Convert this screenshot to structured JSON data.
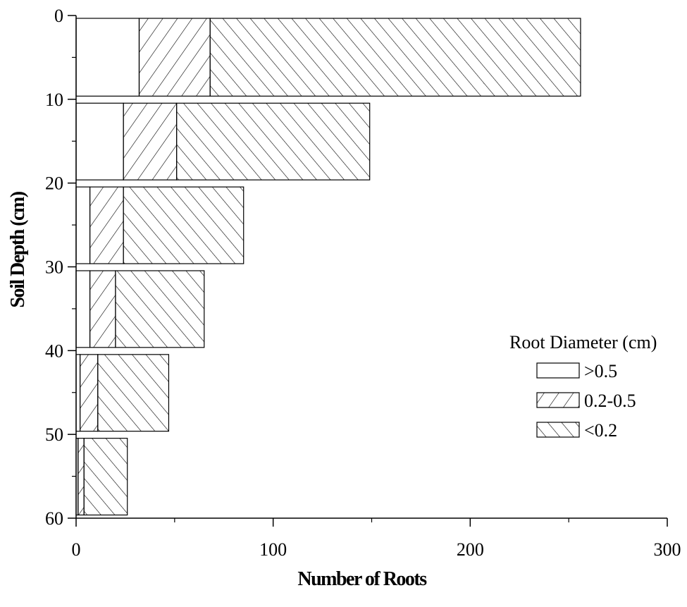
{
  "chart_data": {
    "type": "bar",
    "orientation": "horizontal",
    "stacked": true,
    "categories": [
      "0-10",
      "10-20",
      "20-30",
      "30-40",
      "40-50",
      "50-60"
    ],
    "series": [
      {
        "name": ">0.5",
        "values": [
          32,
          24,
          7,
          7,
          2,
          1
        ],
        "pattern": "none"
      },
      {
        "name": "0.2-0.5",
        "values": [
          36,
          27,
          17,
          13,
          9,
          3
        ],
        "pattern": "forward-hatch"
      },
      {
        "name": "<0.2",
        "values": [
          188,
          98,
          61,
          45,
          36,
          22
        ],
        "pattern": "back-hatch"
      }
    ],
    "xlabel": "Number of Roots",
    "ylabel": "Soil Depth (cm)",
    "xlim": [
      0,
      300
    ],
    "ylim": [
      0,
      60
    ],
    "y_inverted": true,
    "xticks": [
      0,
      100,
      200,
      300
    ],
    "xtick_labels": [
      "0",
      "100",
      "200",
      "300"
    ],
    "yticks": [
      0,
      10,
      20,
      30,
      40,
      50,
      60
    ],
    "ytick_labels": [
      "0",
      "10",
      "20",
      "30",
      "40",
      "50",
      "60"
    ],
    "legend": {
      "title": "Root Diameter (cm)",
      "position": "center-right"
    },
    "grid": false
  }
}
